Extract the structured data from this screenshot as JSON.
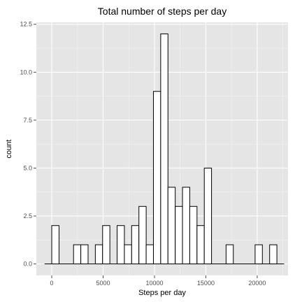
{
  "chart_data": {
    "type": "bar",
    "title": "Total number of steps per day",
    "xlabel": "Steps per day",
    "ylabel": "count",
    "xlim": [
      -1500,
      23000
    ],
    "ylim": [
      -0.6,
      12.6
    ],
    "x_ticks": [
      0,
      5000,
      10000,
      15000,
      20000
    ],
    "x_tick_labels": [
      "0",
      "5000",
      "10000",
      "15000",
      "20000"
    ],
    "y_ticks": [
      0,
      2.5,
      5,
      7.5,
      10,
      12.5
    ],
    "y_tick_labels": [
      "0.0",
      "2.5",
      "5.0",
      "7.5",
      "10.0",
      "12.5"
    ],
    "bin_width": 707,
    "bin_start": -707,
    "values": [
      0,
      2,
      0,
      0,
      1,
      1,
      0,
      1,
      2,
      0,
      2,
      1,
      2,
      3,
      1,
      9,
      12,
      4,
      3,
      4,
      3,
      2,
      5,
      0,
      0,
      1,
      0,
      0,
      0,
      1,
      0,
      1,
      0
    ],
    "grid": true,
    "colors": {
      "panel_background": "#e5e5e5",
      "grid_major": "#ffffff",
      "grid_minor": "#f2f2f2",
      "bar_fill": "#ffffff",
      "bar_stroke": "#000000"
    }
  }
}
